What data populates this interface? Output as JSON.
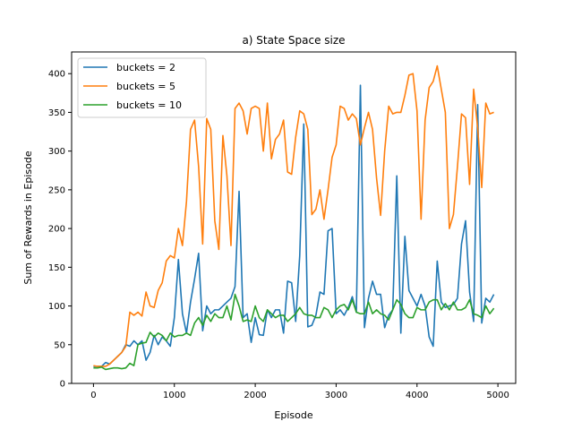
{
  "chart_data": {
    "type": "line",
    "title": "a) State Space size",
    "xlabel": "Episode",
    "ylabel": "Sum of Rewards in Episode",
    "xlim": [
      -270,
      5220
    ],
    "ylim": [
      0,
      428
    ],
    "xticks": [
      0,
      1000,
      2000,
      3000,
      4000,
      5000
    ],
    "yticks": [
      0,
      50,
      100,
      150,
      200,
      250,
      300,
      350,
      400
    ],
    "grid": false,
    "legend_position": "top-left",
    "x": [
      0,
      50,
      100,
      150,
      200,
      250,
      300,
      350,
      400,
      450,
      500,
      550,
      600,
      650,
      700,
      750,
      800,
      850,
      900,
      950,
      1000,
      1050,
      1100,
      1150,
      1200,
      1250,
      1300,
      1350,
      1400,
      1450,
      1500,
      1550,
      1600,
      1650,
      1700,
      1750,
      1800,
      1850,
      1900,
      1950,
      2000,
      2050,
      2100,
      2150,
      2200,
      2250,
      2300,
      2350,
      2400,
      2450,
      2500,
      2550,
      2600,
      2650,
      2700,
      2750,
      2800,
      2850,
      2900,
      2950,
      3000,
      3050,
      3100,
      3150,
      3200,
      3250,
      3300,
      3350,
      3400,
      3450,
      3500,
      3550,
      3600,
      3650,
      3700,
      3750,
      3800,
      3850,
      3900,
      3950,
      4000,
      4050,
      4100,
      4150,
      4200,
      4250,
      4300,
      4350,
      4400,
      4450,
      4500,
      4550,
      4600,
      4650,
      4700,
      4750,
      4800,
      4850,
      4900,
      4950
    ],
    "series": [
      {
        "name": "buckets = 2",
        "color": "#1f77b4",
        "values": [
          22,
          22,
          22,
          27,
          25,
          30,
          35,
          40,
          50,
          48,
          55,
          50,
          55,
          30,
          40,
          62,
          50,
          60,
          55,
          48,
          85,
          160,
          90,
          65,
          105,
          135,
          168,
          68,
          100,
          90,
          95,
          95,
          100,
          105,
          110,
          125,
          248,
          85,
          90,
          53,
          85,
          63,
          62,
          95,
          85,
          95,
          95,
          65,
          132,
          130,
          80,
          165,
          335,
          73,
          75,
          88,
          118,
          115,
          197,
          200,
          90,
          95,
          88,
          98,
          112,
          92,
          385,
          72,
          110,
          132,
          115,
          115,
          72,
          88,
          95,
          268,
          65,
          190,
          120,
          110,
          100,
          115,
          100,
          60,
          48,
          158,
          105,
          98,
          100,
          102,
          110,
          180,
          210,
          118,
          80,
          360,
          78,
          110,
          105,
          115
        ]
      },
      {
        "name": "buckets = 5",
        "color": "#ff7f0e",
        "values": [
          23,
          22,
          22,
          22,
          25,
          30,
          35,
          40,
          48,
          92,
          88,
          92,
          87,
          118,
          100,
          98,
          120,
          130,
          158,
          165,
          162,
          200,
          178,
          235,
          328,
          340,
          280,
          180,
          342,
          328,
          210,
          173,
          320,
          268,
          178,
          355,
          362,
          352,
          322,
          355,
          358,
          355,
          300,
          362,
          290,
          315,
          322,
          340,
          273,
          270,
          318,
          352,
          348,
          328,
          218,
          225,
          250,
          212,
          250,
          292,
          308,
          358,
          355,
          340,
          348,
          342,
          308,
          330,
          350,
          328,
          265,
          217,
          300,
          358,
          348,
          350,
          350,
          372,
          398,
          400,
          352,
          212,
          340,
          382,
          390,
          410,
          380,
          350,
          200,
          218,
          280,
          348,
          343,
          257,
          380,
          330,
          253,
          362,
          348,
          350
        ]
      },
      {
        "name": "buckets = 10",
        "color": "#2ca02c",
        "values": [
          20,
          20,
          21,
          18,
          19,
          20,
          20,
          19,
          20,
          26,
          23,
          50,
          52,
          53,
          66,
          60,
          65,
          62,
          55,
          65,
          60,
          62,
          62,
          65,
          62,
          78,
          85,
          75,
          88,
          80,
          90,
          85,
          85,
          100,
          82,
          115,
          100,
          80,
          82,
          80,
          100,
          85,
          80,
          95,
          90,
          85,
          88,
          88,
          80,
          85,
          90,
          98,
          90,
          88,
          88,
          85,
          85,
          98,
          95,
          85,
          95,
          100,
          102,
          95,
          108,
          92,
          90,
          90,
          105,
          90,
          95,
          90,
          88,
          82,
          95,
          108,
          102,
          90,
          85,
          85,
          98,
          95,
          95,
          105,
          108,
          108,
          95,
          103,
          95,
          105,
          95,
          95,
          98,
          108,
          90,
          88,
          85,
          100,
          90,
          97
        ]
      }
    ]
  }
}
